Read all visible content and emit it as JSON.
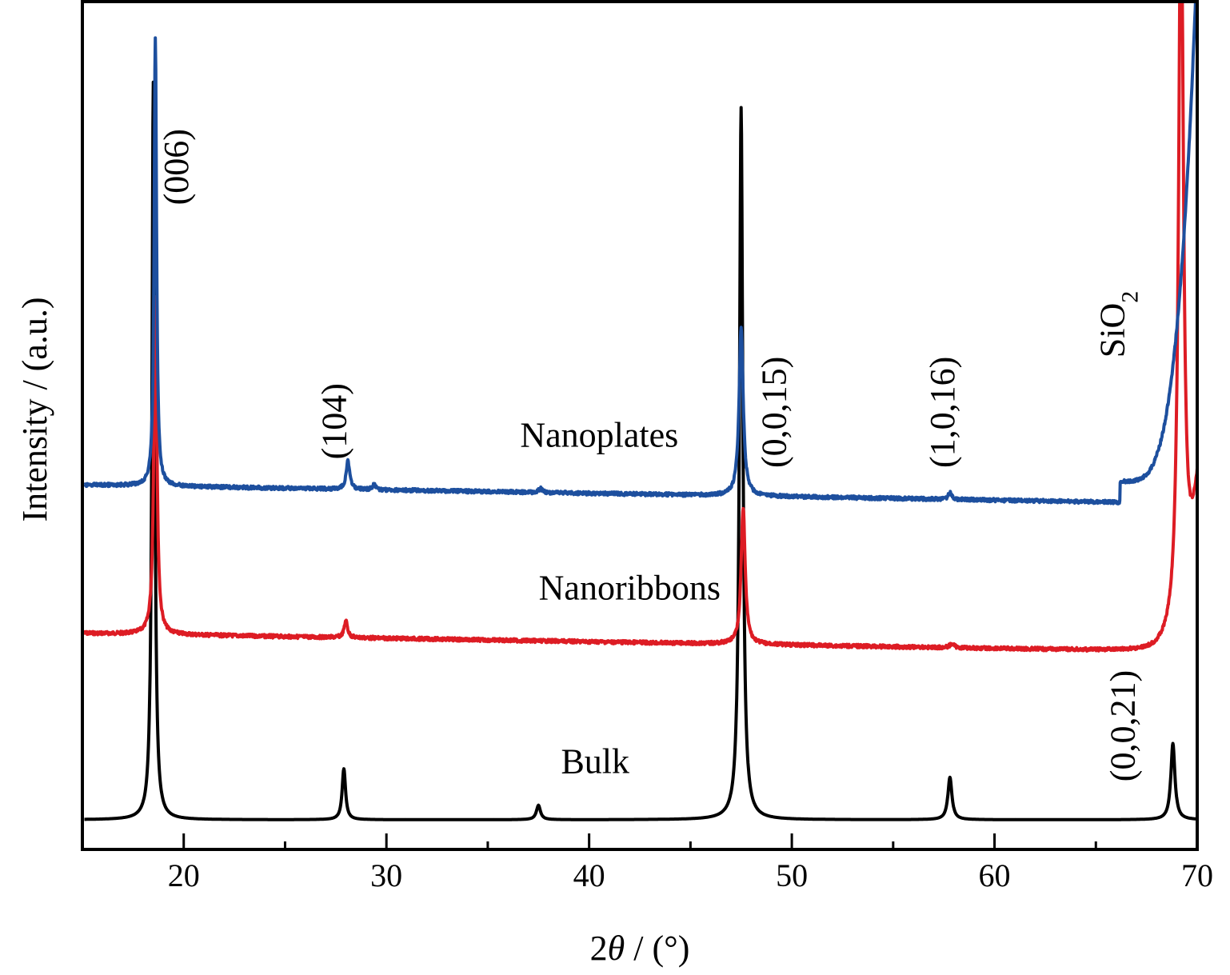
{
  "chart_data": {
    "type": "line",
    "xlabel_prefix": "2",
    "xlabel_symbol": "θ",
    "xlabel_suffix": " / (°)",
    "ylabel": "Intensity / (a.u.)",
    "xlim": [
      15,
      70
    ],
    "ylim": [
      0,
      10
    ],
    "grid": false,
    "x_ticks": [
      20,
      30,
      40,
      50,
      60,
      70
    ],
    "x_minor_ticks": [
      25,
      35,
      45,
      55,
      65
    ],
    "series": [
      {
        "name": "Bulk",
        "color": "#000000",
        "baseline": 0.35,
        "peaks": [
          {
            "x": 18.5,
            "height": 8.7,
            "width": 0.08
          },
          {
            "x": 27.9,
            "height": 0.6,
            "width": 0.1
          },
          {
            "x": 37.5,
            "height": 0.17,
            "width": 0.12
          },
          {
            "x": 47.5,
            "height": 8.4,
            "width": 0.1
          },
          {
            "x": 57.8,
            "height": 0.5,
            "width": 0.12
          },
          {
            "x": 68.8,
            "height": 0.9,
            "width": 0.12
          }
        ],
        "noise": 0.0
      },
      {
        "name": "Nanoribbons",
        "color": "#dd1c24",
        "baseline": 2.55,
        "peaks": [
          {
            "x": 18.6,
            "height": 4.0,
            "width": 0.09
          },
          {
            "x": 28.0,
            "height": 0.2,
            "width": 0.1
          },
          {
            "x": 47.6,
            "height": 1.6,
            "width": 0.12
          },
          {
            "x": 57.9,
            "height": 0.05,
            "width": 0.12
          },
          {
            "x": 69.2,
            "height": 8.8,
            "width": 0.14
          }
        ],
        "noise": 0.02
      },
      {
        "name": "Nanoplates",
        "color": "#1d4f9e",
        "baseline": 4.3,
        "peaks": [
          {
            "x": 18.6,
            "height": 5.3,
            "width": 0.07
          },
          {
            "x": 28.1,
            "height": 0.35,
            "width": 0.1
          },
          {
            "x": 29.4,
            "height": 0.06,
            "width": 0.1
          },
          {
            "x": 37.6,
            "height": 0.05,
            "width": 0.1
          },
          {
            "x": 47.5,
            "height": 2.0,
            "width": 0.12
          },
          {
            "x": 57.8,
            "height": 0.08,
            "width": 0.1
          }
        ],
        "noise": 0.02
      }
    ],
    "series_labels": [
      {
        "text": "Bulk",
        "x": 40.3,
        "y": 0.9
      },
      {
        "text": "Nanoribbons",
        "x": 42.0,
        "y": 2.95
      },
      {
        "text": "Nanoplates",
        "x": 40.5,
        "y": 4.75
      }
    ],
    "peak_labels": [
      {
        "text": "(006)",
        "x": 20.2,
        "y": 7.6
      },
      {
        "text": "(104)",
        "x": 28.0,
        "y": 4.6
      },
      {
        "text": "(0,0,15)",
        "x": 49.7,
        "y": 4.5
      },
      {
        "text": "(1,0,16)",
        "x": 58.0,
        "y": 4.5
      },
      {
        "text": "(0,0,21)",
        "x": 66.9,
        "y": 0.8
      }
    ],
    "sio2_label": {
      "base": "SiO",
      "sub": "2",
      "x": 66.4,
      "y": 5.8
    }
  }
}
